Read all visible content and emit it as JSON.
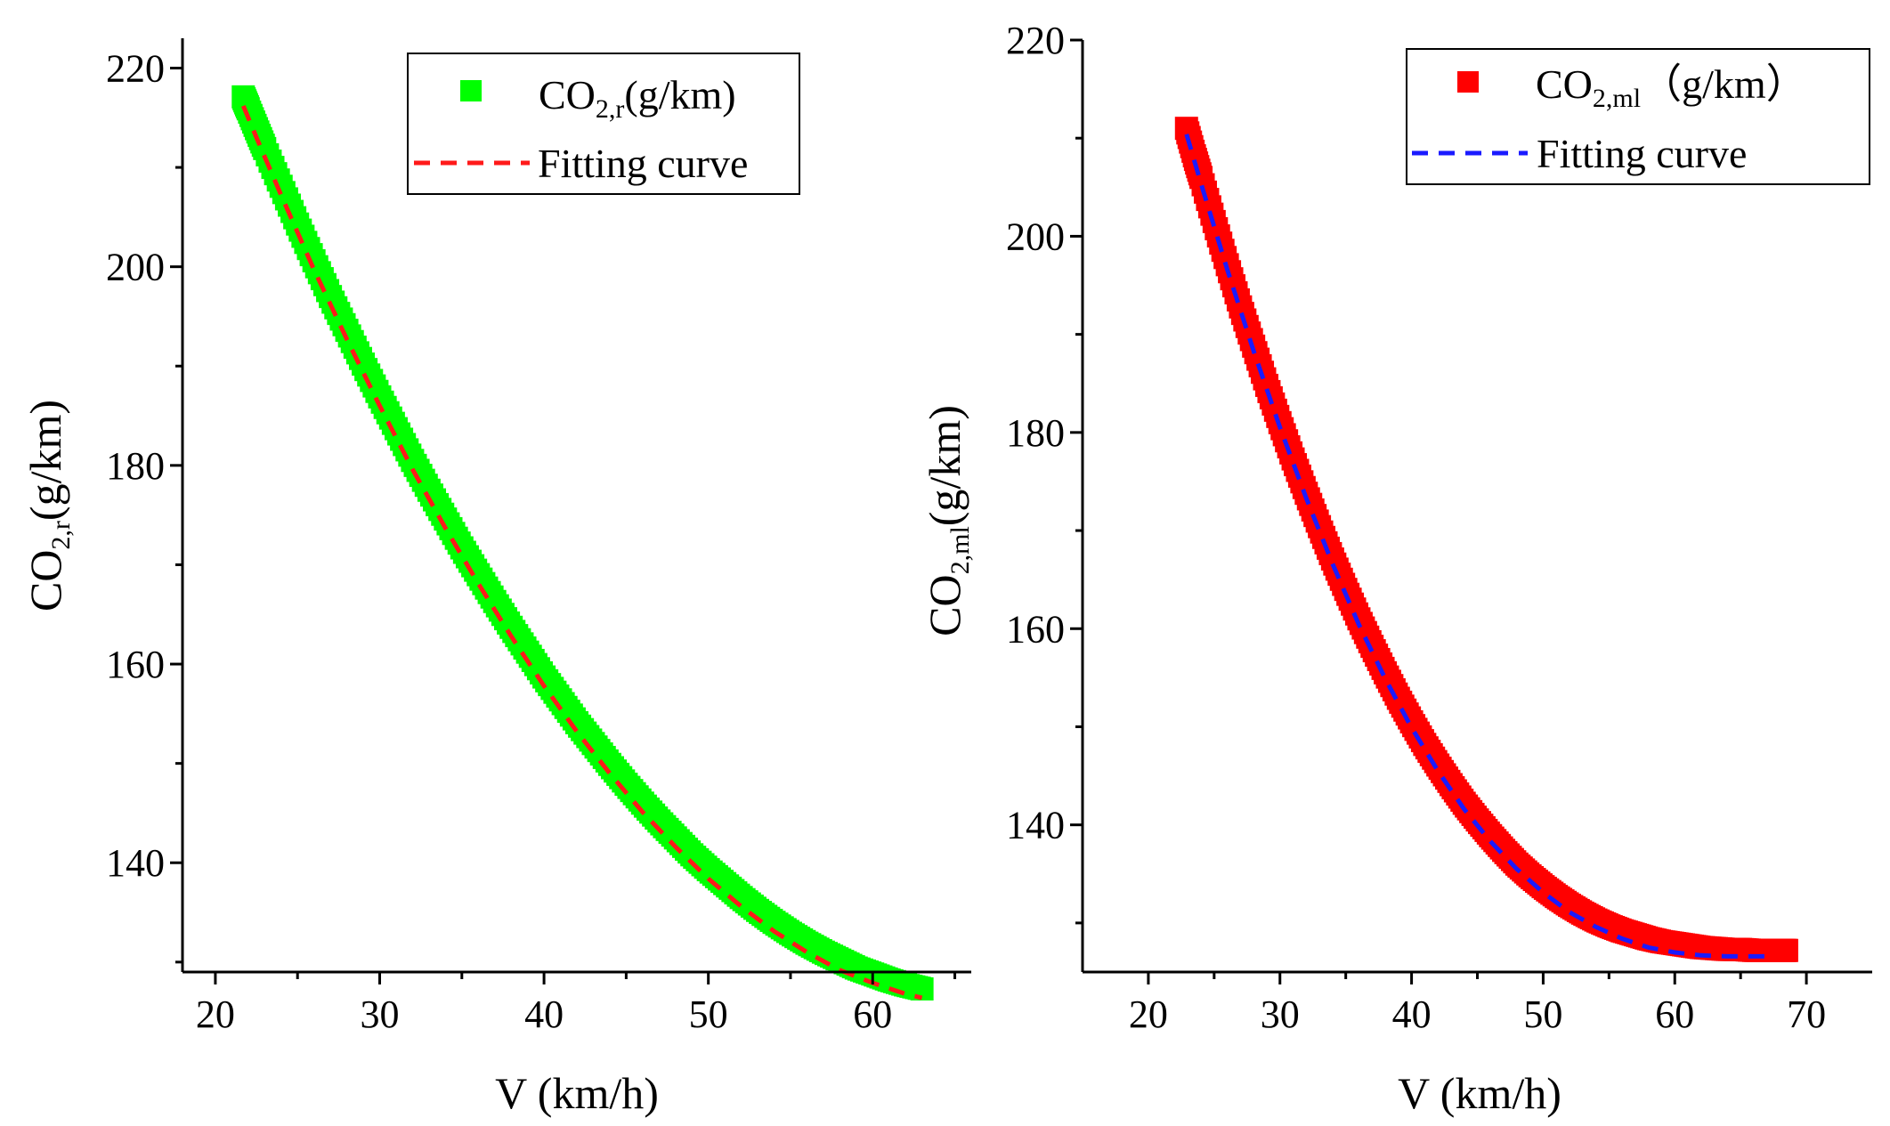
{
  "chart_data": [
    {
      "type": "scatter",
      "xlabel": "V (km/h)",
      "ylabel": {
        "base": "CO",
        "sub": "2,r",
        "unit": "(g/km)"
      },
      "xlim": [
        18,
        66
      ],
      "ylim": [
        129,
        223
      ],
      "xticks": [
        20,
        30,
        40,
        50,
        60
      ],
      "yticks": [
        140,
        160,
        180,
        200,
        220
      ],
      "legend": {
        "position": "top-right",
        "items": [
          {
            "marker": "square",
            "color": "#00ff00",
            "text_base": "CO",
            "text_sub": "2,r",
            "text_rest": "(g/km)"
          },
          {
            "marker": "dashed-line",
            "color": "#ff1a1a",
            "text_base": "Fitting curve",
            "text_sub": "",
            "text_rest": ""
          }
        ]
      },
      "series": [
        {
          "name": "CO2,r (g/km)",
          "style": "scatter",
          "color": "#00ff00",
          "x": [
            21.7,
            22,
            22.5,
            23,
            24,
            25,
            26,
            27,
            28,
            29,
            30,
            31,
            32,
            33,
            34,
            35,
            36,
            37,
            38,
            39,
            40,
            41,
            42,
            43,
            44,
            45,
            46,
            47,
            48,
            49,
            50,
            51,
            52,
            53,
            54,
            55,
            56,
            57,
            58,
            59,
            60,
            61,
            62,
            63
          ],
          "y": [
            217.1,
            215.9,
            213.9,
            211.9,
            208.1,
            204.3,
            200.6,
            197.0,
            193.6,
            190.2,
            186.9,
            183.7,
            180.5,
            177.5,
            174.6,
            171.7,
            169.0,
            166.3,
            163.7,
            161.2,
            158.7,
            156.4,
            154.1,
            152.0,
            149.9,
            147.9,
            146.0,
            144.2,
            142.5,
            140.8,
            139.3,
            137.9,
            136.5,
            135.2,
            134.0,
            132.9,
            131.9,
            131.0,
            130.2,
            129.4,
            128.8,
            128.2,
            127.7,
            127.3
          ]
        },
        {
          "name": "Fitting curve",
          "style": "dashed-line",
          "color": "#ff1a1a",
          "x": [
            21.7,
            22.5,
            24,
            26,
            28,
            30,
            32,
            34,
            36,
            38,
            40,
            42,
            44,
            46,
            48,
            50,
            52,
            54,
            56,
            58,
            60,
            62,
            63
          ],
          "y": [
            216.2,
            213.0,
            207.2,
            199.7,
            192.7,
            186.0,
            179.6,
            173.7,
            168.1,
            162.8,
            157.8,
            153.2,
            149.0,
            145.1,
            141.6,
            138.4,
            135.6,
            133.1,
            131.0,
            129.2,
            127.9,
            126.8,
            126.4
          ]
        }
      ]
    },
    {
      "type": "scatter",
      "xlabel": "V (km/h)",
      "ylabel": {
        "base": "CO",
        "sub": "2,ml",
        "unit": "(g/km)"
      },
      "xlim": [
        15,
        75
      ],
      "ylim": [
        125,
        220
      ],
      "xticks": [
        20,
        30,
        40,
        50,
        60,
        70
      ],
      "yticks": [
        140,
        160,
        180,
        200,
        220
      ],
      "legend": {
        "position": "top-right",
        "items": [
          {
            "marker": "square",
            "color": "#ff0000",
            "text_base": "CO",
            "text_sub": "2,ml",
            "text_rest": "（g/km）"
          },
          {
            "marker": "dashed-line",
            "color": "#1a1aff",
            "text_base": "Fitting curve",
            "text_sub": "",
            "text_rest": ""
          }
        ]
      },
      "series": [
        {
          "name": "CO2,ml (g/km)",
          "style": "scatter",
          "color": "#ff0000",
          "x": [
            22.9,
            23.5,
            24,
            25,
            26,
            27,
            28,
            29,
            30,
            31,
            32,
            33,
            34,
            35,
            36,
            37,
            38,
            39,
            40,
            41,
            42,
            43,
            44,
            45,
            46,
            47,
            48,
            49,
            50,
            51,
            52,
            53,
            54,
            55,
            56,
            57,
            58,
            59,
            60,
            61,
            62,
            63,
            64,
            65,
            66,
            67,
            68,
            68.5
          ],
          "y": [
            211.0,
            208.2,
            206.0,
            201.5,
            197.1,
            192.8,
            188.8,
            184.8,
            181.0,
            177.3,
            173.8,
            170.4,
            167.1,
            164.0,
            161.0,
            158.2,
            155.5,
            152.9,
            150.5,
            148.2,
            146.1,
            144.1,
            142.2,
            140.5,
            138.9,
            137.4,
            136.0,
            134.8,
            133.7,
            132.7,
            131.8,
            131.0,
            130.3,
            129.7,
            129.2,
            128.8,
            128.4,
            128.1,
            127.9,
            127.7,
            127.5,
            127.4,
            127.3,
            127.3,
            127.2,
            127.2,
            127.2,
            127.2
          ]
        },
        {
          "name": "Fitting curve",
          "style": "dashed-line",
          "color": "#1a1aff",
          "x": [
            22.9,
            24,
            26,
            28,
            30,
            32,
            34,
            36,
            38,
            40,
            42,
            44,
            46,
            48,
            50,
            52,
            54,
            56,
            58,
            60,
            62,
            64,
            66,
            67
          ],
          "y": [
            210.4,
            205.4,
            196.6,
            188.3,
            180.5,
            173.3,
            166.6,
            160.4,
            154.9,
            149.9,
            145.5,
            141.6,
            138.3,
            135.5,
            133.1,
            131.1,
            129.6,
            128.4,
            127.5,
            127.0,
            126.7,
            126.6,
            126.6,
            126.6
          ]
        }
      ]
    }
  ]
}
